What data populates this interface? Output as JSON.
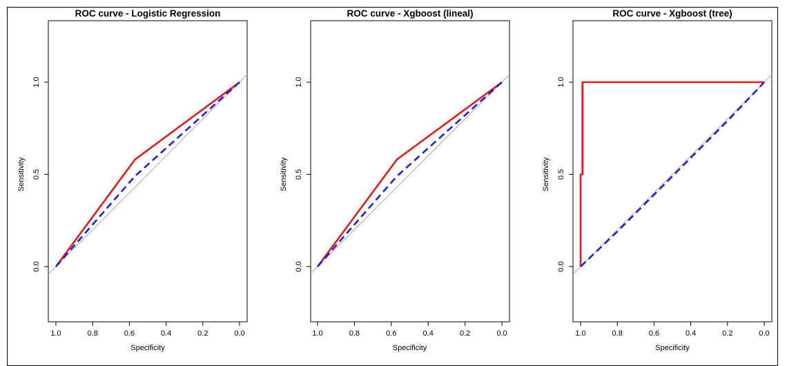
{
  "colors": {
    "model_curve": "#e31a1c",
    "reference_curve": "#1f1fe0",
    "diagonal": "#a8a8a8",
    "axes": "#000000"
  },
  "chart_data": [
    {
      "type": "line",
      "title": "ROC curve - Logistic Regression",
      "xlabel": "Specificity",
      "ylabel": "Sensitivity",
      "x_reversed": true,
      "xlim": [
        1.0,
        0.0
      ],
      "ylim": [
        0.0,
        1.0
      ],
      "xticks": [
        "1.0",
        "0.8",
        "0.6",
        "0.4",
        "0.2",
        "0.0"
      ],
      "yticks": [
        "0.0",
        "0.5",
        "1.0"
      ],
      "grid": false,
      "series": [
        {
          "style": "solid-red",
          "points": [
            [
              1.0,
              0.0
            ],
            [
              0.57,
              0.58
            ],
            [
              0.0,
              1.0
            ]
          ]
        },
        {
          "style": "dashed-blue",
          "points": [
            [
              1.0,
              0.0
            ],
            [
              0.57,
              0.49
            ],
            [
              0.0,
              1.0
            ]
          ]
        }
      ],
      "diagonal": true
    },
    {
      "type": "line",
      "title": "ROC curve - Xgboost (lineal)",
      "xlabel": "Specificity",
      "ylabel": "Sensitivity",
      "x_reversed": true,
      "xlim": [
        1.0,
        0.0
      ],
      "ylim": [
        0.0,
        1.0
      ],
      "xticks": [
        "1.0",
        "0.8",
        "0.6",
        "0.4",
        "0.2",
        "0.0"
      ],
      "yticks": [
        "0.0",
        "0.5",
        "1.0"
      ],
      "grid": false,
      "series": [
        {
          "style": "solid-red",
          "points": [
            [
              1.0,
              0.0
            ],
            [
              0.57,
              0.58
            ],
            [
              0.0,
              1.0
            ]
          ]
        },
        {
          "style": "dashed-blue",
          "points": [
            [
              1.0,
              0.0
            ],
            [
              0.57,
              0.49
            ],
            [
              0.0,
              1.0
            ]
          ]
        }
      ],
      "diagonal": true
    },
    {
      "type": "line",
      "title": "ROC curve - Xgboost (tree)",
      "xlabel": "Specificity",
      "ylabel": "Sensitivity",
      "x_reversed": true,
      "xlim": [
        1.0,
        0.0
      ],
      "ylim": [
        0.0,
        1.0
      ],
      "xticks": [
        "1.0",
        "0.8",
        "0.6",
        "0.4",
        "0.2",
        "0.0"
      ],
      "yticks": [
        "0.0",
        "0.5",
        "1.0"
      ],
      "grid": false,
      "series": [
        {
          "style": "solid-red",
          "points": [
            [
              1.0,
              0.0
            ],
            [
              1.0,
              0.5
            ],
            [
              0.99,
              0.5
            ],
            [
              0.99,
              1.0
            ],
            [
              0.0,
              1.0
            ]
          ]
        },
        {
          "style": "dashed-blue",
          "points": [
            [
              1.0,
              0.0
            ],
            [
              0.8,
              0.19
            ],
            [
              0.6,
              0.39
            ],
            [
              0.4,
              0.59
            ],
            [
              0.2,
              0.79
            ],
            [
              0.0,
              1.0
            ]
          ]
        }
      ],
      "diagonal": true
    }
  ]
}
